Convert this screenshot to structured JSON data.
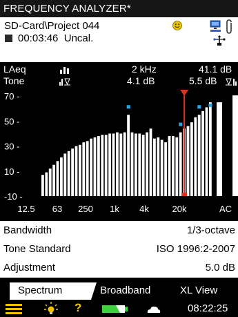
{
  "header": {
    "title": "FREQUENCY ANALYZER*",
    "path": "SD-Card\\Project 044",
    "elapsed_time": "00:03:46",
    "calibration_status": "Uncal."
  },
  "readout": {
    "row1": {
      "parameter": "LAeq",
      "frequency": "2 kHz",
      "value": "41.1 dB"
    },
    "row2": {
      "parameter": "Tone",
      "tone_value": "4.1 dB",
      "value": "5.5 dB"
    }
  },
  "chart_data": {
    "type": "bar",
    "ylim": [
      -10,
      75
    ],
    "y_ticks": [
      "70",
      "50",
      "30",
      "10",
      "-10"
    ],
    "x_ticks": [
      "12.5",
      "63",
      "250",
      "1k",
      "4k",
      "20k",
      "AC"
    ],
    "values": [
      7,
      9,
      12,
      15,
      18,
      21,
      24,
      26,
      28,
      30,
      31,
      33,
      34,
      36,
      37,
      38,
      39,
      39,
      40,
      40,
      41,
      40,
      41,
      55,
      41,
      40,
      40,
      39,
      41,
      44,
      36,
      37,
      35,
      33,
      38,
      38,
      37,
      41,
      44,
      46,
      49,
      53,
      55,
      58,
      61,
      65
    ],
    "cursor_index": 38,
    "tone_marker_indices": [
      23,
      37,
      42,
      45
    ],
    "broadband_value": 65,
    "bar_color": "#ffffff",
    "cursor_color": "#e03020",
    "tone_marker_color": "#2aa6e0"
  },
  "params": {
    "bandwidth_label": "Bandwidth",
    "bandwidth_value": "1/3-octave",
    "tone_standard_label": "Tone Standard",
    "tone_standard_value": "ISO 1996:2-2007",
    "adjustment_label": "Adjustment",
    "adjustment_value": "5.0 dB"
  },
  "tabs": {
    "spectrum": "Spectrum",
    "broadband": "Broadband",
    "xl_view": "XL View"
  },
  "status": {
    "clock": "08:22:25"
  },
  "colors": {
    "accent_yellow": "#f2c200",
    "battery_green": "#3fd13f"
  }
}
